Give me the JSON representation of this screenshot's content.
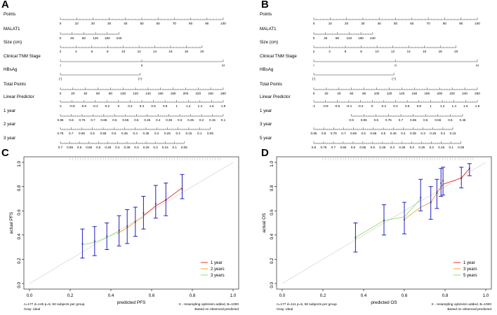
{
  "panels": {
    "A": {
      "letter": "A",
      "rows": [
        {
          "label": "Points",
          "ticks": [
            "0",
            "10",
            "20",
            "30",
            "40",
            "50",
            "60",
            "70",
            "80",
            "90",
            "100"
          ]
        },
        {
          "label": "MALAT1",
          "ticks": [
            "0",
            "40",
            "80",
            "120",
            "180",
            "240"
          ]
        },
        {
          "label": "Size (cm)",
          "ticks": [
            "2",
            "4",
            "6",
            "8",
            "10",
            "12",
            "14",
            "16",
            "18",
            "20"
          ]
        },
        {
          "label": "Clinical TNM Stage",
          "ticks": [
            "I",
            "II",
            "III"
          ]
        },
        {
          "label": "HBsAg",
          "ticks": [
            "(-)",
            "(+)"
          ]
        },
        {
          "label": "Total Points",
          "ticks": [
            "0",
            "20",
            "40",
            "60",
            "80",
            "100",
            "120",
            "140",
            "160",
            "180",
            "200",
            "220",
            "240",
            "260"
          ]
        },
        {
          "label": "Linear Predictor",
          "ticks": [
            "-1",
            "-0.8",
            "-0.6",
            "-0.4",
            "-0.2",
            "0",
            "0.2",
            "0.4",
            "0.6",
            "0.8",
            "1",
            "1.2",
            "1.4",
            "1.6",
            "1.8"
          ]
        },
        {
          "label": "1 year",
          "ticks": [
            "0.85",
            "0.8",
            "0.75",
            "0.7",
            "0.65",
            "0.6",
            "0.55",
            "0.5",
            "0.45",
            "0.4",
            "0.35",
            "0.3",
            "0.25",
            "0.2",
            "0.15",
            "0.1"
          ]
        },
        {
          "label": "2 year",
          "ticks": [
            "0.75",
            "0.7",
            "0.65",
            "0.6",
            "0.55",
            "0.5",
            "0.45",
            "0.4",
            "0.35",
            "0.3",
            "0.25",
            "0.2",
            "0.15",
            "0.1",
            "0.05"
          ]
        },
        {
          "label": "3 year",
          "ticks": [
            "0.7",
            "0.65",
            "0.6",
            "0.55",
            "0.5",
            "0.45",
            "0.4",
            "0.35",
            "0.3",
            "0.25",
            "0.2",
            "0.15",
            "0.1",
            "0.05"
          ]
        }
      ]
    },
    "B": {
      "letter": "B",
      "rows": [
        {
          "label": "Points",
          "ticks": [
            "0",
            "10",
            "20",
            "30",
            "40",
            "50",
            "60",
            "70",
            "80",
            "90",
            "100"
          ]
        },
        {
          "label": "MALAT1",
          "ticks": [
            "0",
            "40",
            "80",
            "120",
            "180",
            "240"
          ]
        },
        {
          "label": "Size (cm)",
          "ticks": [
            "2",
            "4",
            "6",
            "8",
            "10",
            "12",
            "14",
            "16",
            "18",
            "20"
          ]
        },
        {
          "label": "Clinical TNM Stage",
          "ticks": [
            "I",
            "II",
            "III"
          ]
        },
        {
          "label": "HBsAg",
          "ticks": [
            "(-)",
            "(+)"
          ]
        },
        {
          "label": "Total Points",
          "ticks": [
            "0",
            "20",
            "40",
            "60",
            "80",
            "100",
            "120",
            "140",
            "160",
            "180",
            "200",
            "220",
            "240",
            "260"
          ]
        },
        {
          "label": "Linear Predictor",
          "ticks": [
            "-1",
            "-0.8",
            "-0.6",
            "-0.4",
            "-0.2",
            "0",
            "0.2",
            "0.4",
            "0.6",
            "0.8",
            "1",
            "1.2",
            "1.4",
            "1.6",
            "1.8"
          ]
        },
        {
          "label": "1 year",
          "ticks": [
            "0.9",
            "0.85",
            "0.8",
            "0.75",
            "0.7",
            "0.65",
            "0.6",
            "0.55",
            "0.5",
            "0.45"
          ]
        },
        {
          "label": "3 year",
          "ticks": [
            "0.85",
            "0.8",
            "0.75",
            "0.7",
            "0.65",
            "0.6",
            "0.55",
            "0.5",
            "0.45",
            "0.4",
            "0.35",
            "0.3",
            "0.25",
            "0.2",
            "0.15"
          ]
        },
        {
          "label": "5 year",
          "ticks": [
            "0.8",
            "0.75",
            "0.7",
            "0.65",
            "0.6",
            "0.55",
            "0.5",
            "0.45",
            "0.4",
            "0.35",
            "0.3",
            "0.25",
            "0.2",
            "0.15",
            "0.1",
            "0.05"
          ]
        }
      ]
    },
    "C": {
      "letter": "C",
      "xlabel": "predicted PFS",
      "ylabel": "actual PFS",
      "footer_left": [
        "n=177 d=145 p=5, 50 subjects per group",
        "Gray: ideal"
      ],
      "footer_right": [
        "X - resampling optimism added, B=1000",
        "Based on observed-predicted"
      ],
      "legend": [
        "1 year",
        "2 years",
        "3 years"
      ]
    },
    "D": {
      "letter": "D",
      "xlabel": "predicted OS",
      "ylabel": "actual OS",
      "footer_left": [
        "n=177 d=111 p=5, 50 subjects per group",
        "Gray: ideal"
      ],
      "footer_right": [
        "X - resampling optimism added, B=1000",
        "Based on observed-predicted"
      ],
      "legend": [
        "1 year",
        "3 years",
        "5 years"
      ]
    }
  },
  "colors": {
    "one": "#e0302a",
    "two": "#f0a030",
    "three": "#90e070",
    "err": "#2020c0",
    "ideal": "#cccccc"
  },
  "chart_data": [
    {
      "type": "line",
      "xlabel": "predicted PFS",
      "ylabel": "actual PFS",
      "xlim": [
        0.0,
        1.0
      ],
      "ylim": [
        0.0,
        1.0
      ],
      "xticks": [
        "0.0",
        "0.2",
        "0.4",
        "0.6",
        "0.8",
        "1.0"
      ],
      "yticks": [
        "0.0",
        "0.2",
        "0.4",
        "0.6",
        "0.8",
        "1.0"
      ],
      "grid": false,
      "legend_position": "bottom-right",
      "series": [
        {
          "name": "1 year",
          "x": [
            0.56,
            0.62,
            0.67,
            0.75
          ],
          "y": [
            0.56,
            0.64,
            0.69,
            0.79
          ]
        },
        {
          "name": "2 years",
          "x": [
            0.43,
            0.48,
            0.52,
            0.56
          ],
          "y": [
            0.41,
            0.46,
            0.51,
            0.55
          ]
        },
        {
          "name": "3 years",
          "x": [
            0.26,
            0.32,
            0.38,
            0.44
          ],
          "y": [
            0.32,
            0.34,
            0.38,
            0.43
          ]
        }
      ],
      "error_bars": [
        {
          "x": 0.26,
          "y": 0.33,
          "lo": 0.21,
          "hi": 0.45
        },
        {
          "x": 0.32,
          "y": 0.35,
          "lo": 0.23,
          "hi": 0.47
        },
        {
          "x": 0.38,
          "y": 0.39,
          "lo": 0.28,
          "hi": 0.5
        },
        {
          "x": 0.44,
          "y": 0.44,
          "lo": 0.31,
          "hi": 0.56
        },
        {
          "x": 0.48,
          "y": 0.47,
          "lo": 0.33,
          "hi": 0.61
        },
        {
          "x": 0.52,
          "y": 0.51,
          "lo": 0.39,
          "hi": 0.63
        },
        {
          "x": 0.56,
          "y": 0.58,
          "lo": 0.45,
          "hi": 0.72
        },
        {
          "x": 0.62,
          "y": 0.66,
          "lo": 0.54,
          "hi": 0.81
        },
        {
          "x": 0.67,
          "y": 0.69,
          "lo": 0.56,
          "hi": 0.83
        },
        {
          "x": 0.75,
          "y": 0.78,
          "lo": 0.7,
          "hi": 0.9
        }
      ]
    },
    {
      "type": "line",
      "xlabel": "predicted OS",
      "ylabel": "actual OS",
      "xlim": [
        0.0,
        1.0
      ],
      "ylim": [
        0.0,
        1.0
      ],
      "xticks": [
        "0.0",
        "0.2",
        "0.4",
        "0.6",
        "0.8",
        "1.0"
      ],
      "yticks": [
        "0.0",
        "0.2",
        "0.4",
        "0.6",
        "0.8",
        "1.0"
      ],
      "grid": false,
      "legend_position": "bottom-right",
      "series": [
        {
          "name": "1 year",
          "x": [
            0.76,
            0.79,
            0.88,
            0.92
          ],
          "y": [
            0.75,
            0.82,
            0.87,
            0.95
          ]
        },
        {
          "name": "3 years",
          "x": [
            0.6,
            0.68,
            0.73,
            0.78
          ],
          "y": [
            0.53,
            0.63,
            0.67,
            0.8
          ]
        },
        {
          "name": "5 years",
          "x": [
            0.36,
            0.5,
            0.6,
            0.68
          ],
          "y": [
            0.38,
            0.52,
            0.55,
            0.7
          ]
        }
      ],
      "error_bars": [
        {
          "x": 0.36,
          "y": 0.38,
          "lo": 0.26,
          "hi": 0.5
        },
        {
          "x": 0.5,
          "y": 0.52,
          "lo": 0.4,
          "hi": 0.65
        },
        {
          "x": 0.6,
          "y": 0.53,
          "lo": 0.41,
          "hi": 0.67
        },
        {
          "x": 0.68,
          "y": 0.71,
          "lo": 0.6,
          "hi": 0.86
        },
        {
          "x": 0.73,
          "y": 0.67,
          "lo": 0.53,
          "hi": 0.8
        },
        {
          "x": 0.76,
          "y": 0.75,
          "lo": 0.62,
          "hi": 0.86
        },
        {
          "x": 0.78,
          "y": 0.83,
          "lo": 0.72,
          "hi": 0.95
        },
        {
          "x": 0.79,
          "y": 0.85,
          "lo": 0.73,
          "hi": 0.96
        },
        {
          "x": 0.88,
          "y": 0.87,
          "lo": 0.79,
          "hi": 0.96
        },
        {
          "x": 0.92,
          "y": 0.95,
          "lo": 0.89,
          "hi": 0.99
        }
      ]
    }
  ]
}
